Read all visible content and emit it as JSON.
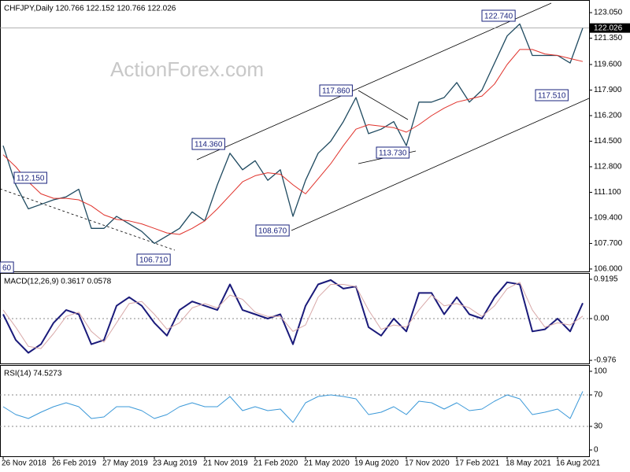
{
  "chart_data": [
    {
      "type": "line",
      "title": "CHFJPY,Daily  120.766 122.152 120.766 122.026",
      "watermark": "ActionForex.com",
      "xlim": [
        -0.25,
        46.5
      ],
      "xticks": [
        {
          "value": 0,
          "label": "26 Nov 2018"
        },
        {
          "value": 4,
          "label": "26 Feb 2019"
        },
        {
          "value": 8,
          "label": "27 May 2019"
        },
        {
          "value": 12,
          "label": "23 Aug 2019"
        },
        {
          "value": 16,
          "label": "21 Nov 2019"
        },
        {
          "value": 20,
          "label": "21 Feb 2020"
        },
        {
          "value": 24,
          "label": "21 May 2020"
        },
        {
          "value": 28,
          "label": "19 Aug 2020"
        },
        {
          "value": 32,
          "label": "17 Nov 2020"
        },
        {
          "value": 36,
          "label": "17 Feb 2021"
        },
        {
          "value": 40,
          "label": "18 May 2021"
        },
        {
          "value": 44,
          "label": "16 Aug 2021"
        }
      ],
      "ylim": [
        105.84,
        123.89
      ],
      "yticks": [
        {
          "value": 123.05,
          "label": "123.050"
        },
        {
          "value": 121.35,
          "label": "121.350"
        },
        {
          "value": 119.6,
          "label": "119.600"
        },
        {
          "value": 117.9,
          "label": "117.900"
        },
        {
          "value": 116.2,
          "label": "116.200"
        },
        {
          "value": 114.5,
          "label": "114.500"
        },
        {
          "value": 112.8,
          "label": "112.800"
        },
        {
          "value": 111.1,
          "label": "111.100"
        },
        {
          "value": 109.4,
          "label": "109.400"
        },
        {
          "value": 107.7,
          "label": "107.700"
        },
        {
          "value": 106.0,
          "label": "106.000"
        }
      ],
      "grid": false,
      "last_price": {
        "value": 122.026,
        "label": "122.026"
      },
      "series": [
        {
          "color": "#1f4a60",
          "width": 1.3,
          "values": [
            114.2,
            111.6,
            110.0,
            110.3,
            110.6,
            110.8,
            111.3,
            108.7,
            108.7,
            109.5,
            109.0,
            108.5,
            107.7,
            108.2,
            108.7,
            109.8,
            109.2,
            111.6,
            113.7,
            112.6,
            113.2,
            111.9,
            112.6,
            109.5,
            111.9,
            113.7,
            114.5,
            115.8,
            117.4,
            115.0,
            115.3,
            115.8,
            114.2,
            117.1,
            117.1,
            117.4,
            118.4,
            117.1,
            117.9,
            119.7,
            121.5,
            122.3,
            120.2,
            120.2,
            120.2,
            119.7,
            122.03
          ]
        },
        {
          "color": "#e0312a",
          "width": 1,
          "values": [
            113.6,
            112.8,
            111.8,
            111.0,
            110.7,
            110.7,
            110.6,
            110.2,
            109.6,
            109.3,
            109.2,
            109.0,
            108.7,
            108.4,
            108.3,
            108.7,
            109.2,
            110.0,
            110.9,
            111.8,
            112.2,
            112.4,
            112.3,
            111.6,
            111.0,
            112.0,
            113.0,
            114.2,
            115.3,
            115.6,
            115.5,
            115.4,
            115.1,
            115.6,
            116.2,
            116.7,
            117.1,
            117.3,
            117.5,
            118.3,
            119.6,
            120.6,
            120.6,
            120.3,
            120.2,
            120.0,
            119.8
          ]
        }
      ],
      "annotations": [
        "122.740",
        "117.860",
        "114.360",
        "112.150",
        "108.670",
        "106.710",
        "113.730",
        "117.510",
        "60"
      ]
    },
    {
      "type": "line",
      "title": "MACD(12,26,9) 0.3617 0.0578",
      "ylim": [
        -1.048,
        1.066
      ],
      "yticks": [
        0.9195,
        {
          "value": 0,
          "label": "0.00"
        },
        -0.976
      ],
      "grid": true,
      "series": [
        {
          "color": "#1a1a7a",
          "width": 2,
          "values": [
            0.1,
            -0.5,
            -0.8,
            -0.6,
            -0.1,
            0.2,
            0.1,
            -0.6,
            -0.5,
            0.3,
            0.5,
            0.3,
            -0.1,
            -0.4,
            0.2,
            0.4,
            0.3,
            0.2,
            0.8,
            0.2,
            0.1,
            0.0,
            0.1,
            -0.6,
            0.3,
            0.8,
            0.9,
            0.7,
            0.75,
            -0.2,
            -0.4,
            0.0,
            -0.3,
            0.6,
            0.6,
            0.1,
            0.5,
            0.1,
            0.0,
            0.5,
            0.85,
            0.8,
            -0.3,
            -0.25,
            0.0,
            -0.3,
            0.3617
          ]
        },
        {
          "color": "#d8a8a8",
          "width": 1,
          "values": [
            0.2,
            -0.2,
            -0.65,
            -0.7,
            -0.35,
            0.05,
            0.15,
            -0.3,
            -0.55,
            -0.1,
            0.35,
            0.4,
            0.1,
            -0.25,
            -0.1,
            0.25,
            0.35,
            0.25,
            0.55,
            0.45,
            0.15,
            0.05,
            0.05,
            -0.3,
            -0.15,
            0.5,
            0.8,
            0.8,
            0.75,
            0.2,
            -0.25,
            -0.15,
            -0.2,
            0.2,
            0.55,
            0.3,
            0.35,
            0.25,
            0.05,
            0.3,
            0.7,
            0.85,
            0.2,
            -0.2,
            -0.1,
            -0.15,
            0.0578
          ]
        }
      ]
    },
    {
      "type": "line",
      "title": "RSI(14) 74.5273",
      "ylim": [
        -8,
        108
      ],
      "yticks": [
        100,
        70,
        30,
        0
      ],
      "grid": true,
      "series": [
        {
          "color": "#3a98d8",
          "width": 1,
          "values": [
            55,
            45,
            40,
            48,
            55,
            60,
            55,
            40,
            42,
            55,
            55,
            50,
            40,
            45,
            55,
            60,
            55,
            55,
            68,
            50,
            55,
            50,
            52,
            35,
            60,
            68,
            70,
            68,
            65,
            45,
            48,
            55,
            45,
            62,
            60,
            52,
            60,
            50,
            52,
            62,
            70,
            65,
            45,
            48,
            52,
            40,
            74.5273
          ]
        }
      ]
    }
  ]
}
